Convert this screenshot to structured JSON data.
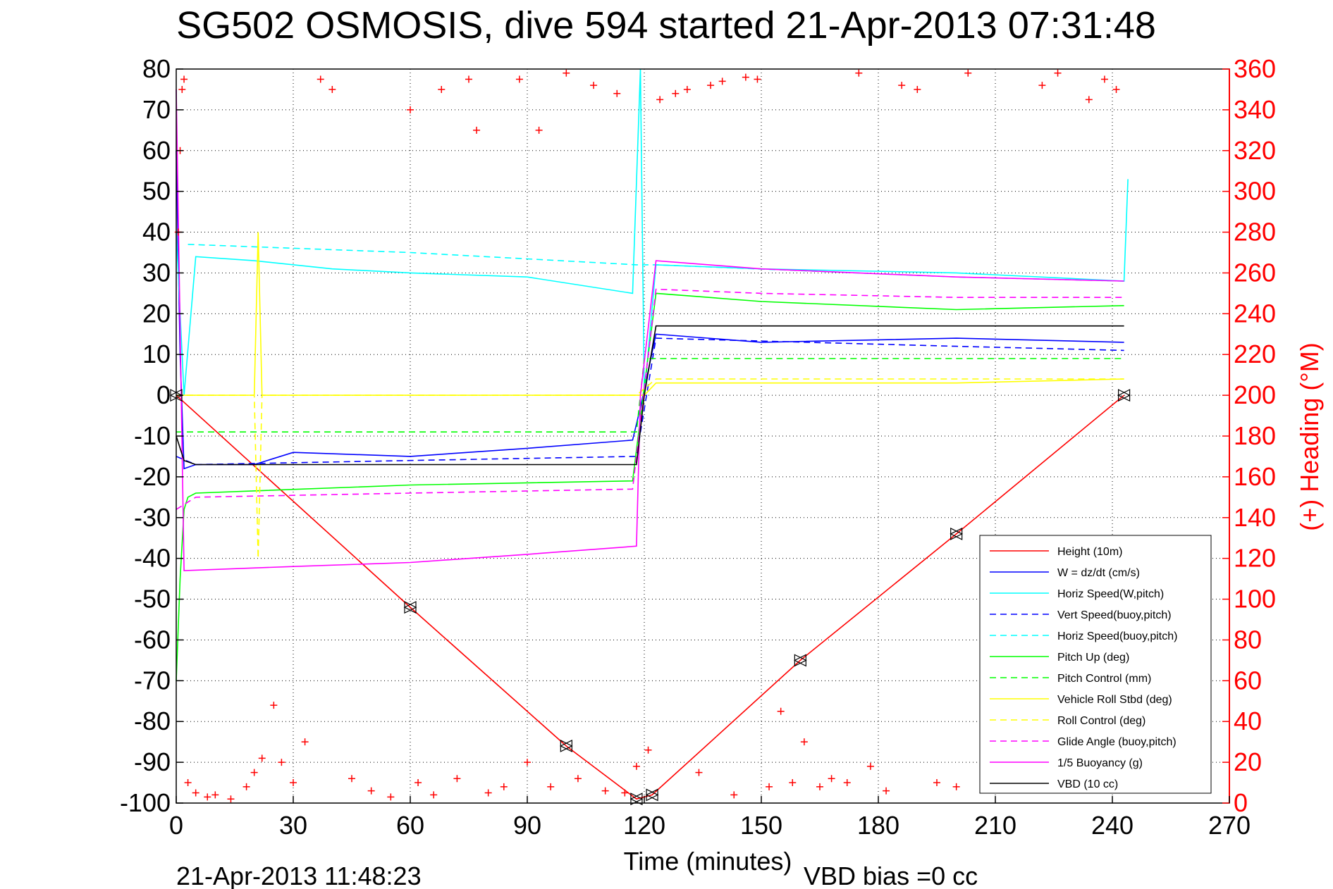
{
  "chart_data": {
    "type": "line",
    "title": "SG502 OSMOSIS, dive 594 started 21-Apr-2013 07:31:48",
    "xlabel": "Time (minutes)",
    "ylabel": "",
    "ylabel_right": "(+) Heading (°M)",
    "xlim": [
      0,
      270
    ],
    "ylim": [
      -100,
      80
    ],
    "ylim_right": [
      0,
      360
    ],
    "x_ticks": [
      "0",
      "30",
      "60",
      "90",
      "120",
      "150",
      "180",
      "210",
      "240",
      "270"
    ],
    "y_ticks": [
      "80",
      "70",
      "60",
      "50",
      "40",
      "30",
      "20",
      "10",
      "0",
      "-10",
      "-20",
      "-30",
      "-40",
      "-50",
      "-60",
      "-70",
      "-80",
      "-90",
      "-100"
    ],
    "y_right_ticks": [
      "360",
      "340",
      "320",
      "300",
      "280",
      "260",
      "240",
      "220",
      "200",
      "180",
      "160",
      "140",
      "120",
      "100",
      "80",
      "60",
      "40",
      "20",
      "0"
    ],
    "grid": true,
    "legend_position": "bottom-right",
    "footer_left": "21-Apr-2013 11:48:23",
    "footer_right": "VBD bias =0 cc",
    "series": [
      {
        "name": "Height (10m)",
        "color": "#ff0000",
        "style": "solid",
        "marker": "triangle",
        "x": [
          0,
          60,
          100,
          118,
          122,
          160,
          200,
          243
        ],
        "y": [
          0,
          -52,
          -86,
          -99,
          -98,
          -65,
          -34,
          0
        ]
      },
      {
        "name": "W = dz/dt (cm/s)",
        "color": "#0000ff",
        "style": "solid",
        "x": [
          0,
          1,
          2,
          5,
          20,
          30,
          60,
          90,
          117,
          119,
          123,
          150,
          200,
          243
        ],
        "y": [
          60,
          10,
          -18,
          -17,
          -17,
          -14,
          -15,
          -13,
          -11,
          -3,
          15,
          13,
          14,
          13
        ]
      },
      {
        "name": "Horiz Speed(W,pitch)",
        "color": "#00ffff",
        "style": "solid",
        "x": [
          0,
          2,
          5,
          20,
          40,
          60,
          90,
          117,
          119,
          120,
          123,
          150,
          200,
          243,
          244
        ],
        "y": [
          40,
          0,
          34,
          33,
          31,
          30,
          29,
          25,
          80,
          0,
          32,
          31,
          30,
          28,
          53
        ]
      },
      {
        "name": "Vert Speed(buoy,pitch)",
        "color": "#0000ff",
        "style": "dashed",
        "x": [
          0,
          5,
          60,
          118,
          123,
          200,
          243
        ],
        "y": [
          -15,
          -17,
          -16,
          -15,
          14,
          12,
          11
        ]
      },
      {
        "name": "Horiz Speed(buoy,pitch)",
        "color": "#00ffff",
        "style": "dashed",
        "x": [
          3,
          60,
          118,
          123,
          200,
          243
        ],
        "y": [
          37,
          35,
          32,
          32,
          29,
          28
        ]
      },
      {
        "name": "Pitch Up (deg)",
        "color": "#00ff00",
        "style": "solid",
        "x": [
          0,
          1,
          2,
          3,
          5,
          60,
          117,
          123,
          150,
          200,
          243
        ],
        "y": [
          -70,
          -45,
          -28,
          -25,
          -24,
          -22,
          -21,
          25,
          23,
          21,
          22
        ]
      },
      {
        "name": "Pitch Control (mm)",
        "color": "#00ff00",
        "style": "dashed",
        "x": [
          0,
          118,
          120,
          243
        ],
        "y": [
          -9,
          -9,
          9,
          9
        ]
      },
      {
        "name": "Vehicle Roll Stbd (deg)",
        "color": "#ffff00",
        "style": "solid",
        "x": [
          0,
          20,
          21,
          22,
          60,
          90,
          118,
          120,
          123,
          150,
          200,
          243
        ],
        "y": [
          0,
          0,
          40,
          0,
          0,
          0,
          0,
          0,
          3,
          3,
          3,
          4
        ]
      },
      {
        "name": "Roll Control (deg)",
        "color": "#ffff00",
        "style": "dashed",
        "x": [
          0,
          20,
          21,
          22,
          60,
          118,
          123,
          200,
          243
        ],
        "y": [
          0,
          0,
          -40,
          0,
          0,
          0,
          4,
          4,
          4
        ]
      },
      {
        "name": "Glide Angle (buoy,pitch)",
        "color": "#ff00ff",
        "style": "dashed",
        "x": [
          0,
          5,
          60,
          117,
          123,
          150,
          200,
          243
        ],
        "y": [
          -28,
          -25,
          -24,
          -23,
          26,
          25,
          24,
          24
        ]
      },
      {
        "name": "1/5 Buoyancy (g)",
        "color": "#ff00ff",
        "style": "solid",
        "x": [
          0,
          2,
          30,
          60,
          90,
          118,
          119,
          123,
          150,
          200,
          243
        ],
        "y": [
          75,
          -43,
          -42,
          -41,
          -39,
          -37,
          0,
          33,
          31,
          29,
          28
        ]
      },
      {
        "name": "VBD (10 cc)",
        "color": "#000000",
        "style": "solid",
        "x": [
          0,
          2,
          5,
          60,
          118,
          120,
          123,
          243
        ],
        "y": [
          -10,
          -16,
          -17,
          -17,
          -17,
          0,
          17,
          17
        ]
      }
    ],
    "heading": {
      "name": "(+) Heading",
      "color": "#ff0000",
      "marker": "plus",
      "x": [
        0.5,
        1,
        1.5,
        2,
        3,
        5,
        8,
        10,
        14,
        18,
        20,
        22,
        25,
        27,
        30,
        33,
        37,
        40,
        45,
        50,
        55,
        60,
        62,
        66,
        68,
        72,
        75,
        77,
        80,
        84,
        88,
        90,
        93,
        96,
        100,
        103,
        107,
        110,
        113,
        115,
        118,
        121,
        124,
        128,
        131,
        134,
        137,
        140,
        143,
        146,
        149,
        152,
        155,
        158,
        161,
        165,
        168,
        172,
        175,
        178,
        182,
        186,
        190,
        195,
        200,
        203,
        207,
        210,
        214,
        218,
        222,
        226,
        230,
        234,
        238,
        241
      ],
      "y": [
        280,
        320,
        350,
        355,
        10,
        5,
        3,
        4,
        2,
        8,
        15,
        22,
        48,
        20,
        10,
        30,
        355,
        350,
        12,
        6,
        3,
        340,
        10,
        4,
        350,
        12,
        355,
        330,
        5,
        8,
        355,
        20,
        330,
        8,
        358,
        12,
        352,
        6,
        348,
        5,
        18,
        26,
        345,
        348,
        350,
        15,
        352,
        354,
        4,
        356,
        355,
        8,
        45,
        10,
        30,
        8,
        12,
        10,
        358,
        18,
        6,
        352,
        350,
        10,
        8,
        358,
        14,
        20,
        50,
        8,
        352,
        358,
        15,
        345,
        355,
        350
      ]
    }
  }
}
